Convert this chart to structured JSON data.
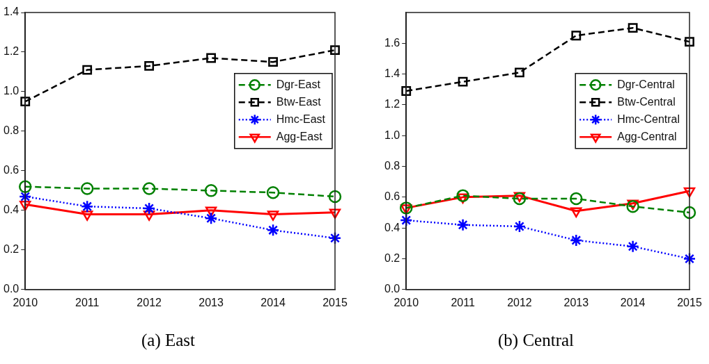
{
  "chart_data": [
    {
      "type": "line",
      "title": "(a) East",
      "categories": [
        "2010",
        "2011",
        "2012",
        "2013",
        "2014",
        "2015"
      ],
      "ylim": [
        0,
        1.4
      ],
      "yticks": [
        {
          "value": 0,
          "label": "0.0"
        },
        {
          "value": 0.2,
          "label": "0.2"
        },
        {
          "value": 0.4,
          "label": "0.4"
        },
        {
          "value": 0.6,
          "label": "0.6"
        },
        {
          "value": 0.8,
          "label": "0.8"
        },
        {
          "value": 1.0,
          "label": "1.0"
        },
        {
          "value": 1.2,
          "label": "1.2"
        },
        {
          "value": 1.4,
          "label": "1.4"
        }
      ],
      "legend": "right",
      "series": [
        {
          "name": "Dgr-East",
          "color": "#008000",
          "marker": "circle",
          "line_style": "dashed",
          "values": [
            0.52,
            0.51,
            0.51,
            0.5,
            0.49,
            0.47
          ]
        },
        {
          "name": "Btw-East",
          "color": "#000000",
          "marker": "square",
          "line_style": "dashed",
          "values": [
            0.95,
            1.11,
            1.13,
            1.17,
            1.15,
            1.21
          ]
        },
        {
          "name": "Hmc-East",
          "color": "#0000ff",
          "marker": "cross",
          "line_style": "dotted",
          "values": [
            0.47,
            0.42,
            0.41,
            0.36,
            0.3,
            0.26
          ]
        },
        {
          "name": "Agg-East",
          "color": "#ff0000",
          "marker": "triangle",
          "line_style": "solid",
          "values": [
            0.43,
            0.38,
            0.38,
            0.4,
            0.38,
            0.39
          ]
        }
      ]
    },
    {
      "type": "line",
      "title": "(b) Central",
      "categories": [
        "2010",
        "2011",
        "2012",
        "2013",
        "2014",
        "2015"
      ],
      "ylim": [
        0,
        1.8
      ],
      "yticks": [
        {
          "value": 0,
          "label": "0.0"
        },
        {
          "value": 0.2,
          "label": "0.2"
        },
        {
          "value": 0.4,
          "label": "0.4"
        },
        {
          "value": 0.6,
          "label": "0.6"
        },
        {
          "value": 0.8,
          "label": "0.8"
        },
        {
          "value": 1.0,
          "label": "1.0"
        },
        {
          "value": 1.2,
          "label": "1.2"
        },
        {
          "value": 1.4,
          "label": "1.4"
        },
        {
          "value": 1.6,
          "label": "1.6"
        }
      ],
      "legend": "right",
      "series": [
        {
          "name": "Dgr-Central",
          "color": "#008000",
          "marker": "circle",
          "line_style": "dashed",
          "values": [
            0.53,
            0.61,
            0.59,
            0.59,
            0.54,
            0.5
          ]
        },
        {
          "name": "Btw-Central",
          "color": "#000000",
          "marker": "square",
          "line_style": "dashed",
          "values": [
            1.29,
            1.35,
            1.41,
            1.65,
            1.7,
            1.61
          ]
        },
        {
          "name": "Hmc-Central",
          "color": "#0000ff",
          "marker": "cross",
          "line_style": "dotted",
          "values": [
            0.45,
            0.42,
            0.41,
            0.32,
            0.28,
            0.2
          ]
        },
        {
          "name": "Agg-Central",
          "color": "#ff0000",
          "marker": "triangle",
          "line_style": "solid",
          "values": [
            0.53,
            0.6,
            0.61,
            0.51,
            0.56,
            0.64
          ]
        }
      ]
    }
  ]
}
